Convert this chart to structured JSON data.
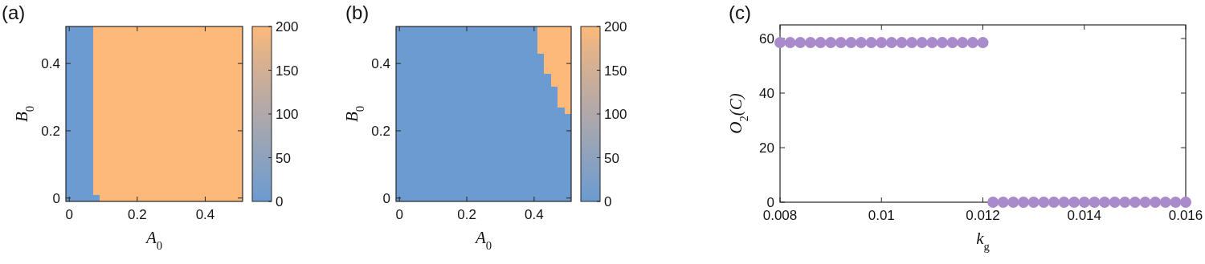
{
  "chart_data": [
    {
      "type": "heatmap",
      "title": "(a)",
      "xlabel": "A$_{0}$",
      "ylabel": "B$_{0}$",
      "categories": [
        "0",
        null,
        null,
        null,
        null,
        null,
        null,
        null,
        null,
        null,
        "0.2",
        null,
        null,
        null,
        null,
        null,
        null,
        null,
        null,
        null,
        "0.4",
        null,
        null,
        null,
        null,
        null
      ],
      "y_categories": [
        null,
        null,
        null,
        null,
        null,
        "0.4",
        null,
        null,
        null,
        null,
        null,
        null,
        null,
        null,
        null,
        "0.2",
        null,
        null,
        null,
        null,
        null,
        null,
        null,
        null,
        null,
        "0"
      ],
      "cells": [
        [
          0,
          0,
          0,
          0,
          200,
          200,
          200,
          200,
          200,
          200,
          200,
          200,
          200,
          200,
          200,
          200,
          200,
          200,
          200,
          200,
          200,
          200,
          200,
          200,
          200,
          200
        ],
        [
          0,
          0,
          0,
          0,
          200,
          200,
          200,
          200,
          200,
          200,
          200,
          200,
          200,
          200,
          200,
          200,
          200,
          200,
          200,
          200,
          200,
          200,
          200,
          200,
          200,
          200
        ],
        [
          0,
          0,
          0,
          0,
          200,
          200,
          200,
          200,
          200,
          200,
          200,
          200,
          200,
          200,
          200,
          200,
          200,
          200,
          200,
          200,
          200,
          200,
          200,
          200,
          200,
          200
        ],
        [
          0,
          0,
          0,
          0,
          200,
          200,
          200,
          200,
          200,
          200,
          200,
          200,
          200,
          200,
          200,
          200,
          200,
          200,
          200,
          200,
          200,
          200,
          200,
          200,
          200,
          200
        ],
        [
          0,
          0,
          0,
          0,
          200,
          200,
          200,
          200,
          200,
          200,
          200,
          200,
          200,
          200,
          200,
          200,
          200,
          200,
          200,
          200,
          200,
          200,
          200,
          200,
          200,
          200
        ],
        [
          0,
          0,
          0,
          0,
          200,
          200,
          200,
          200,
          200,
          200,
          200,
          200,
          200,
          200,
          200,
          200,
          200,
          200,
          200,
          200,
          200,
          200,
          200,
          200,
          200,
          200
        ],
        [
          0,
          0,
          0,
          0,
          200,
          200,
          200,
          200,
          200,
          200,
          200,
          200,
          200,
          200,
          200,
          200,
          200,
          200,
          200,
          200,
          200,
          200,
          200,
          200,
          200,
          200
        ],
        [
          0,
          0,
          0,
          0,
          200,
          200,
          200,
          200,
          200,
          200,
          200,
          200,
          200,
          200,
          200,
          200,
          200,
          200,
          200,
          200,
          200,
          200,
          200,
          200,
          200,
          200
        ],
        [
          0,
          0,
          0,
          0,
          200,
          200,
          200,
          200,
          200,
          200,
          200,
          200,
          200,
          200,
          200,
          200,
          200,
          200,
          200,
          200,
          200,
          200,
          200,
          200,
          200,
          200
        ],
        [
          0,
          0,
          0,
          0,
          200,
          200,
          200,
          200,
          200,
          200,
          200,
          200,
          200,
          200,
          200,
          200,
          200,
          200,
          200,
          200,
          200,
          200,
          200,
          200,
          200,
          200
        ],
        [
          0,
          0,
          0,
          0,
          200,
          200,
          200,
          200,
          200,
          200,
          200,
          200,
          200,
          200,
          200,
          200,
          200,
          200,
          200,
          200,
          200,
          200,
          200,
          200,
          200,
          200
        ],
        [
          0,
          0,
          0,
          0,
          200,
          200,
          200,
          200,
          200,
          200,
          200,
          200,
          200,
          200,
          200,
          200,
          200,
          200,
          200,
          200,
          200,
          200,
          200,
          200,
          200,
          200
        ],
        [
          0,
          0,
          0,
          0,
          200,
          200,
          200,
          200,
          200,
          200,
          200,
          200,
          200,
          200,
          200,
          200,
          200,
          200,
          200,
          200,
          200,
          200,
          200,
          200,
          200,
          200
        ],
        [
          0,
          0,
          0,
          0,
          200,
          200,
          200,
          200,
          200,
          200,
          200,
          200,
          200,
          200,
          200,
          200,
          200,
          200,
          200,
          200,
          200,
          200,
          200,
          200,
          200,
          200
        ],
        [
          0,
          0,
          0,
          0,
          200,
          200,
          200,
          200,
          200,
          200,
          200,
          200,
          200,
          200,
          200,
          200,
          200,
          200,
          200,
          200,
          200,
          200,
          200,
          200,
          200,
          200
        ],
        [
          0,
          0,
          0,
          0,
          200,
          200,
          200,
          200,
          200,
          200,
          200,
          200,
          200,
          200,
          200,
          200,
          200,
          200,
          200,
          200,
          200,
          200,
          200,
          200,
          200,
          200
        ],
        [
          0,
          0,
          0,
          0,
          200,
          200,
          200,
          200,
          200,
          200,
          200,
          200,
          200,
          200,
          200,
          200,
          200,
          200,
          200,
          200,
          200,
          200,
          200,
          200,
          200,
          200
        ],
        [
          0,
          0,
          0,
          0,
          200,
          200,
          200,
          200,
          200,
          200,
          200,
          200,
          200,
          200,
          200,
          200,
          200,
          200,
          200,
          200,
          200,
          200,
          200,
          200,
          200,
          200
        ],
        [
          0,
          0,
          0,
          0,
          200,
          200,
          200,
          200,
          200,
          200,
          200,
          200,
          200,
          200,
          200,
          200,
          200,
          200,
          200,
          200,
          200,
          200,
          200,
          200,
          200,
          200
        ],
        [
          0,
          0,
          0,
          0,
          200,
          200,
          200,
          200,
          200,
          200,
          200,
          200,
          200,
          200,
          200,
          200,
          200,
          200,
          200,
          200,
          200,
          200,
          200,
          200,
          200,
          200
        ],
        [
          0,
          0,
          0,
          0,
          200,
          200,
          200,
          200,
          200,
          200,
          200,
          200,
          200,
          200,
          200,
          200,
          200,
          200,
          200,
          200,
          200,
          200,
          200,
          200,
          200,
          200
        ],
        [
          0,
          0,
          0,
          0,
          200,
          200,
          200,
          200,
          200,
          200,
          200,
          200,
          200,
          200,
          200,
          200,
          200,
          200,
          200,
          200,
          200,
          200,
          200,
          200,
          200,
          200
        ],
        [
          0,
          0,
          0,
          0,
          200,
          200,
          200,
          200,
          200,
          200,
          200,
          200,
          200,
          200,
          200,
          200,
          200,
          200,
          200,
          200,
          200,
          200,
          200,
          200,
          200,
          200
        ],
        [
          0,
          0,
          0,
          0,
          200,
          200,
          200,
          200,
          200,
          200,
          200,
          200,
          200,
          200,
          200,
          200,
          200,
          200,
          200,
          200,
          200,
          200,
          200,
          200,
          200,
          200
        ],
        [
          0,
          0,
          0,
          0,
          200,
          200,
          200,
          200,
          200,
          200,
          200,
          200,
          200,
          200,
          200,
          200,
          200,
          200,
          200,
          200,
          200,
          200,
          200,
          200,
          200,
          200
        ],
        [
          0,
          0,
          0,
          0,
          0,
          200,
          200,
          200,
          200,
          200,
          200,
          200,
          200,
          200,
          200,
          200,
          200,
          200,
          200,
          200,
          200,
          200,
          200,
          200,
          200,
          200
        ]
      ],
      "colors": [
        "#6b9bd1",
        "#7f9fc6",
        "#92a3bb",
        "#a6a7b0",
        "#b9aaa5",
        "#cdae98",
        "#e2b38a",
        "#fdb97a"
      ],
      "clim": [
        0,
        200
      ],
      "cticks": [
        0,
        50,
        100,
        150,
        200
      ]
    },
    {
      "type": "heatmap",
      "title": "(b)",
      "xlabel": "A$_{0}$",
      "ylabel": "B$_{0}$",
      "categories": [
        "0",
        null,
        null,
        null,
        null,
        null,
        null,
        null,
        null,
        null,
        "0.2",
        null,
        null,
        null,
        null,
        null,
        null,
        null,
        null,
        null,
        "0.4",
        null,
        null,
        null,
        null,
        null
      ],
      "y_categories": [
        null,
        null,
        null,
        null,
        null,
        "0.4",
        null,
        null,
        null,
        null,
        null,
        null,
        null,
        null,
        null,
        "0.2",
        null,
        null,
        null,
        null,
        null,
        null,
        null,
        null,
        null,
        "0"
      ],
      "cells": [
        [
          0,
          0,
          0,
          0,
          0,
          0,
          0,
          0,
          0,
          0,
          0,
          0,
          0,
          0,
          0,
          0,
          0,
          0,
          0,
          0,
          0,
          200,
          200,
          200,
          200,
          200
        ],
        [
          0,
          0,
          0,
          0,
          0,
          0,
          0,
          0,
          0,
          0,
          0,
          0,
          0,
          0,
          0,
          0,
          0,
          0,
          0,
          0,
          0,
          200,
          200,
          200,
          200,
          200
        ],
        [
          0,
          0,
          0,
          0,
          0,
          0,
          0,
          0,
          0,
          0,
          0,
          0,
          0,
          0,
          0,
          0,
          0,
          0,
          0,
          0,
          0,
          200,
          200,
          200,
          200,
          200
        ],
        [
          0,
          0,
          0,
          0,
          0,
          0,
          0,
          0,
          0,
          0,
          0,
          0,
          0,
          0,
          0,
          0,
          0,
          0,
          0,
          0,
          0,
          200,
          200,
          200,
          200,
          200
        ],
        [
          0,
          0,
          0,
          0,
          0,
          0,
          0,
          0,
          0,
          0,
          0,
          0,
          0,
          0,
          0,
          0,
          0,
          0,
          0,
          0,
          0,
          0,
          200,
          200,
          200,
          200
        ],
        [
          0,
          0,
          0,
          0,
          0,
          0,
          0,
          0,
          0,
          0,
          0,
          0,
          0,
          0,
          0,
          0,
          0,
          0,
          0,
          0,
          0,
          0,
          200,
          200,
          200,
          200
        ],
        [
          0,
          0,
          0,
          0,
          0,
          0,
          0,
          0,
          0,
          0,
          0,
          0,
          0,
          0,
          0,
          0,
          0,
          0,
          0,
          0,
          0,
          0,
          200,
          200,
          200,
          200
        ],
        [
          0,
          0,
          0,
          0,
          0,
          0,
          0,
          0,
          0,
          0,
          0,
          0,
          0,
          0,
          0,
          0,
          0,
          0,
          0,
          0,
          0,
          0,
          0,
          200,
          200,
          200
        ],
        [
          0,
          0,
          0,
          0,
          0,
          0,
          0,
          0,
          0,
          0,
          0,
          0,
          0,
          0,
          0,
          0,
          0,
          0,
          0,
          0,
          0,
          0,
          0,
          200,
          200,
          200
        ],
        [
          0,
          0,
          0,
          0,
          0,
          0,
          0,
          0,
          0,
          0,
          0,
          0,
          0,
          0,
          0,
          0,
          0,
          0,
          0,
          0,
          0,
          0,
          0,
          0,
          200,
          200
        ],
        [
          0,
          0,
          0,
          0,
          0,
          0,
          0,
          0,
          0,
          0,
          0,
          0,
          0,
          0,
          0,
          0,
          0,
          0,
          0,
          0,
          0,
          0,
          0,
          0,
          200,
          200
        ],
        [
          0,
          0,
          0,
          0,
          0,
          0,
          0,
          0,
          0,
          0,
          0,
          0,
          0,
          0,
          0,
          0,
          0,
          0,
          0,
          0,
          0,
          0,
          0,
          0,
          200,
          200
        ],
        [
          0,
          0,
          0,
          0,
          0,
          0,
          0,
          0,
          0,
          0,
          0,
          0,
          0,
          0,
          0,
          0,
          0,
          0,
          0,
          0,
          0,
          0,
          0,
          0,
          0,
          200
        ],
        [
          0,
          0,
          0,
          0,
          0,
          0,
          0,
          0,
          0,
          0,
          0,
          0,
          0,
          0,
          0,
          0,
          0,
          0,
          0,
          0,
          0,
          0,
          0,
          0,
          0,
          0
        ],
        [
          0,
          0,
          0,
          0,
          0,
          0,
          0,
          0,
          0,
          0,
          0,
          0,
          0,
          0,
          0,
          0,
          0,
          0,
          0,
          0,
          0,
          0,
          0,
          0,
          0,
          0
        ],
        [
          0,
          0,
          0,
          0,
          0,
          0,
          0,
          0,
          0,
          0,
          0,
          0,
          0,
          0,
          0,
          0,
          0,
          0,
          0,
          0,
          0,
          0,
          0,
          0,
          0,
          0
        ],
        [
          0,
          0,
          0,
          0,
          0,
          0,
          0,
          0,
          0,
          0,
          0,
          0,
          0,
          0,
          0,
          0,
          0,
          0,
          0,
          0,
          0,
          0,
          0,
          0,
          0,
          0
        ],
        [
          0,
          0,
          0,
          0,
          0,
          0,
          0,
          0,
          0,
          0,
          0,
          0,
          0,
          0,
          0,
          0,
          0,
          0,
          0,
          0,
          0,
          0,
          0,
          0,
          0,
          0
        ],
        [
          0,
          0,
          0,
          0,
          0,
          0,
          0,
          0,
          0,
          0,
          0,
          0,
          0,
          0,
          0,
          0,
          0,
          0,
          0,
          0,
          0,
          0,
          0,
          0,
          0,
          0
        ],
        [
          0,
          0,
          0,
          0,
          0,
          0,
          0,
          0,
          0,
          0,
          0,
          0,
          0,
          0,
          0,
          0,
          0,
          0,
          0,
          0,
          0,
          0,
          0,
          0,
          0,
          0
        ],
        [
          0,
          0,
          0,
          0,
          0,
          0,
          0,
          0,
          0,
          0,
          0,
          0,
          0,
          0,
          0,
          0,
          0,
          0,
          0,
          0,
          0,
          0,
          0,
          0,
          0,
          0
        ],
        [
          0,
          0,
          0,
          0,
          0,
          0,
          0,
          0,
          0,
          0,
          0,
          0,
          0,
          0,
          0,
          0,
          0,
          0,
          0,
          0,
          0,
          0,
          0,
          0,
          0,
          0
        ],
        [
          0,
          0,
          0,
          0,
          0,
          0,
          0,
          0,
          0,
          0,
          0,
          0,
          0,
          0,
          0,
          0,
          0,
          0,
          0,
          0,
          0,
          0,
          0,
          0,
          0,
          0
        ],
        [
          0,
          0,
          0,
          0,
          0,
          0,
          0,
          0,
          0,
          0,
          0,
          0,
          0,
          0,
          0,
          0,
          0,
          0,
          0,
          0,
          0,
          0,
          0,
          0,
          0,
          0
        ],
        [
          0,
          0,
          0,
          0,
          0,
          0,
          0,
          0,
          0,
          0,
          0,
          0,
          0,
          0,
          0,
          0,
          0,
          0,
          0,
          0,
          0,
          0,
          0,
          0,
          0,
          0
        ],
        [
          0,
          0,
          0,
          0,
          0,
          0,
          0,
          0,
          0,
          0,
          0,
          0,
          0,
          0,
          0,
          0,
          0,
          0,
          0,
          0,
          0,
          0,
          0,
          0,
          0,
          0
        ]
      ],
      "colors": [
        "#6b9bd1",
        "#7f9fc6",
        "#92a3bb",
        "#a6a7b0",
        "#b9aaa5",
        "#cdae98",
        "#e2b38a",
        "#fdb97a"
      ],
      "clim": [
        0,
        200
      ],
      "cticks": [
        0,
        50,
        100,
        150,
        200
      ]
    },
    {
      "type": "scatter",
      "title": "(c)",
      "xlabel": "k$_{g}$",
      "ylabel": "O$_{2}$(C)",
      "marker": "circle",
      "color": "#a98bcb",
      "x": [
        0.008,
        0.0082,
        0.0084,
        0.0086,
        0.0088,
        0.009,
        0.0092,
        0.0094,
        0.0096,
        0.0098,
        0.01,
        0.0102,
        0.0104,
        0.0106,
        0.0108,
        0.011,
        0.0112,
        0.0114,
        0.0116,
        0.0118,
        0.012,
        0.0122,
        0.0124,
        0.0126,
        0.0128,
        0.013,
        0.0132,
        0.0134,
        0.0136,
        0.0138,
        0.014,
        0.0142,
        0.0144,
        0.0146,
        0.0148,
        0.015,
        0.0152,
        0.0154,
        0.0156,
        0.0158,
        0.016
      ],
      "values": [
        58.5,
        58.5,
        58.5,
        58.5,
        58.5,
        58.5,
        58.5,
        58.5,
        58.5,
        58.5,
        58.5,
        58.5,
        58.5,
        58.5,
        58.5,
        58.5,
        58.5,
        58.5,
        58.5,
        58.5,
        58.5,
        0,
        0,
        0,
        0,
        0,
        0,
        0,
        0,
        0,
        0,
        0,
        0,
        0,
        0,
        0,
        0,
        0,
        0,
        0,
        0
      ],
      "xlim": [
        0.008,
        0.016
      ],
      "xticks": [
        0.008,
        0.01,
        0.012,
        0.014,
        0.016
      ],
      "ylim": [
        0,
        65
      ],
      "yticks": [
        0,
        20,
        40,
        60
      ]
    }
  ]
}
